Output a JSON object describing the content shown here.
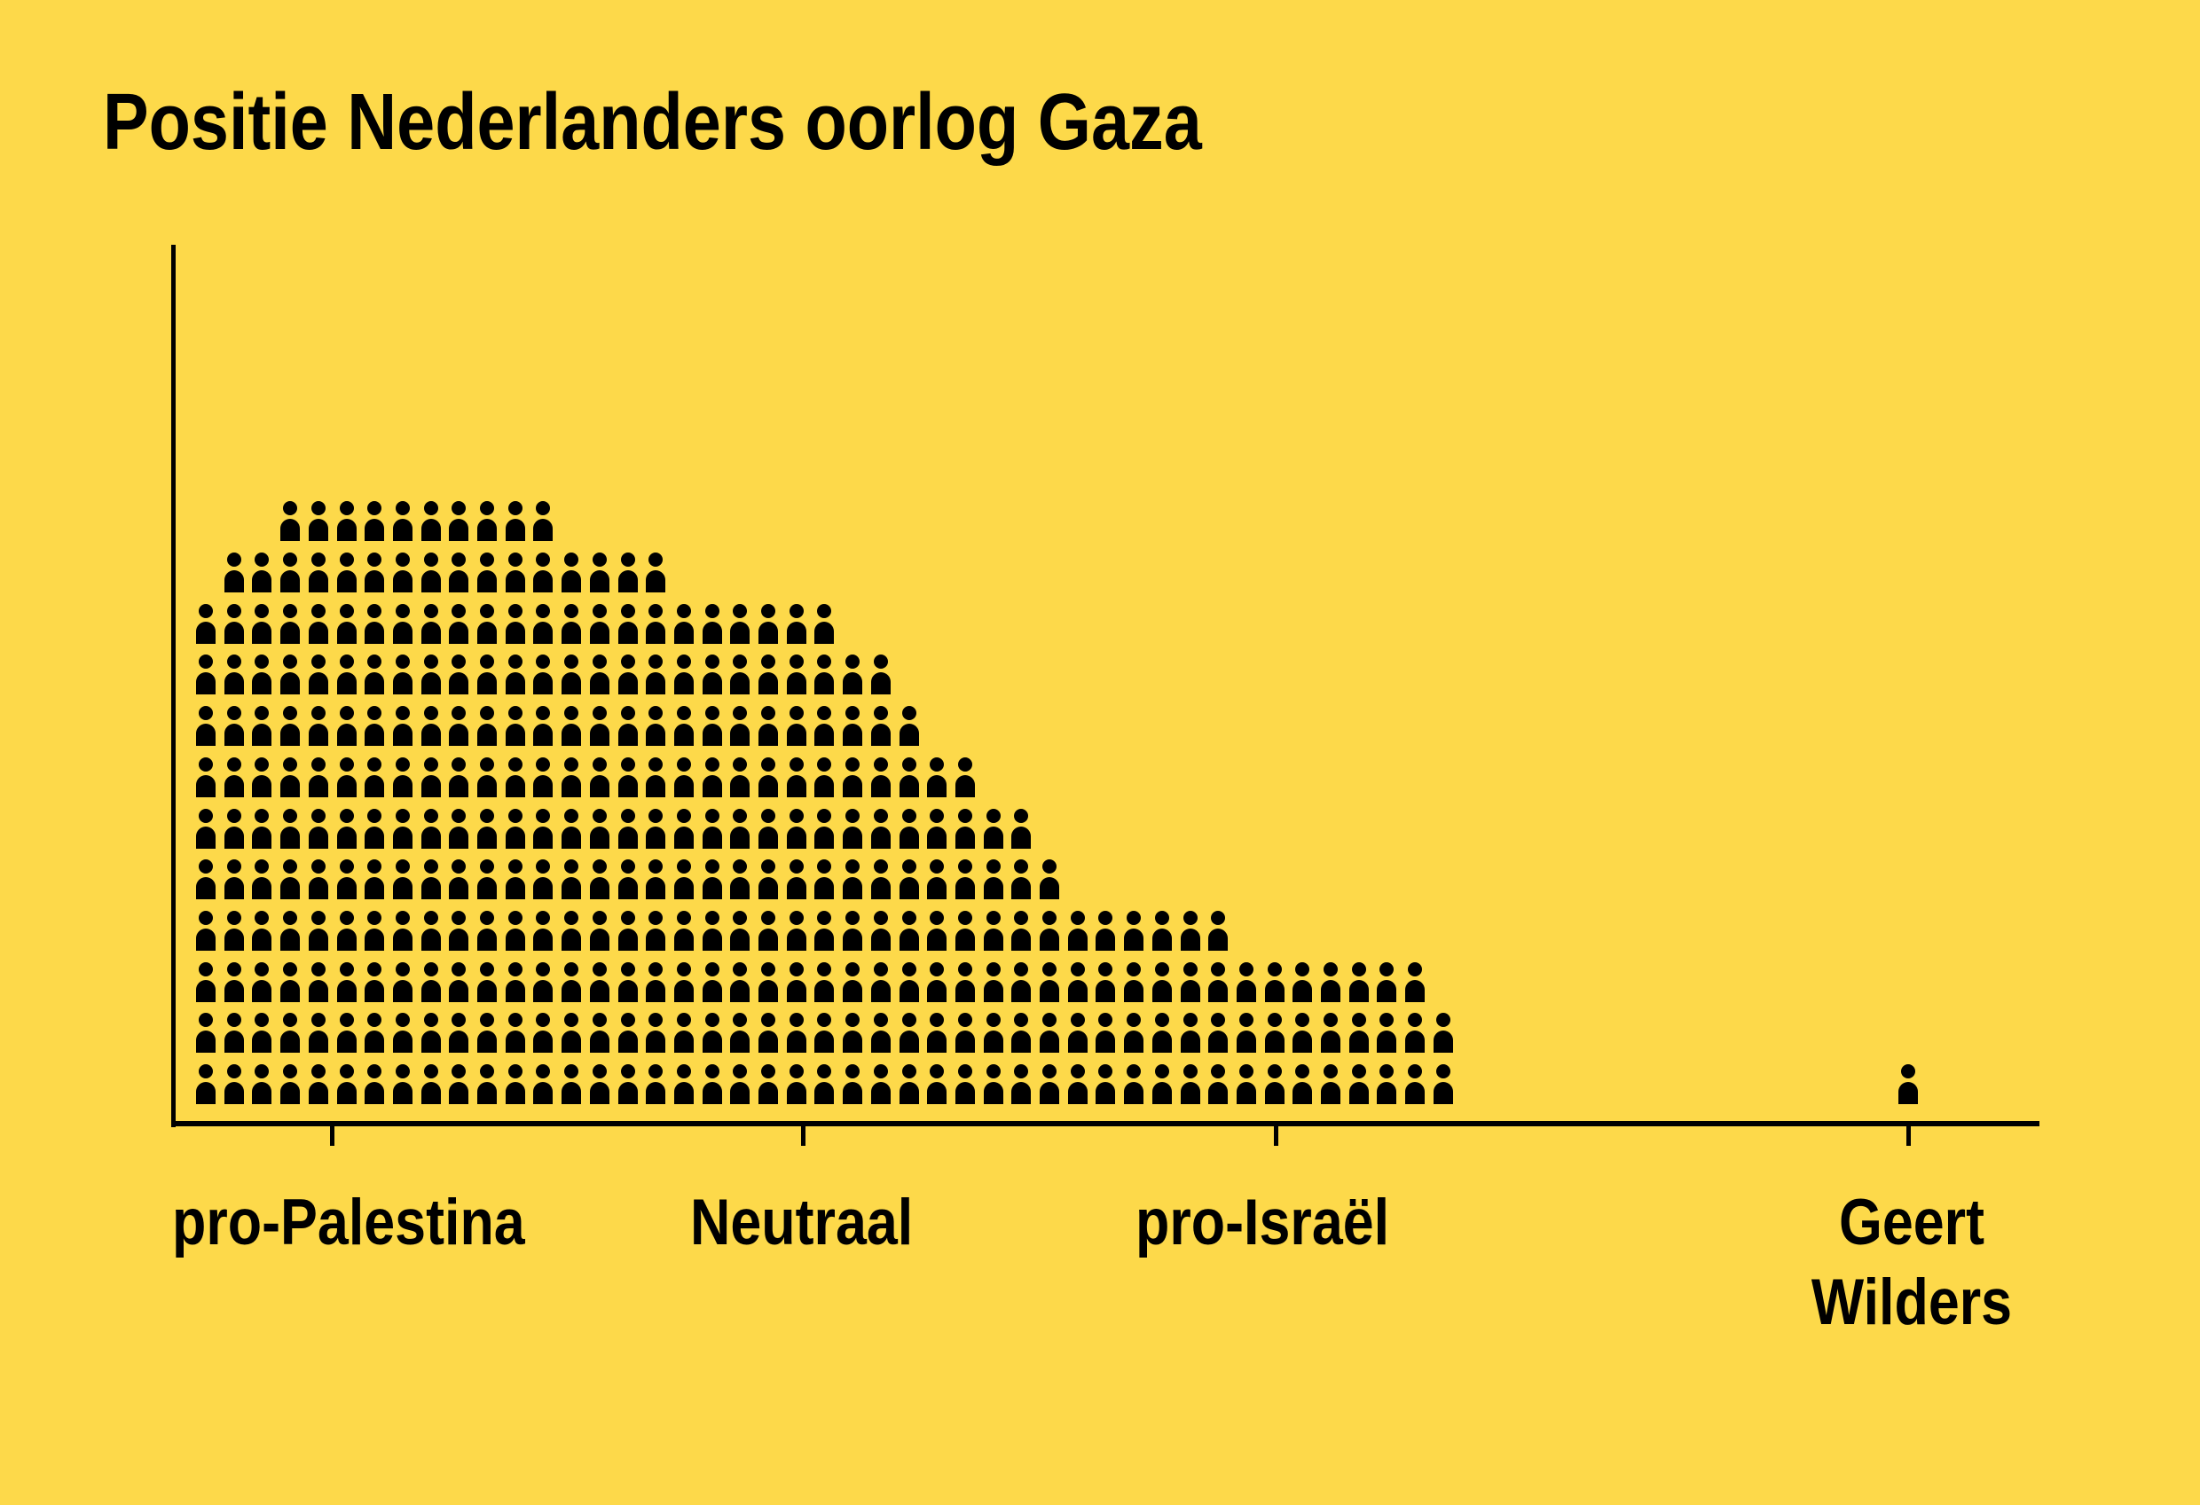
{
  "page": {
    "background_color": "#FDD94A",
    "ink_color": "#000000"
  },
  "chart_data": {
    "type": "pictogram",
    "title": "Positie Nederlanders oorlog Gaza",
    "xlabel": "",
    "ylabel": "",
    "unit_icon": "person-icon",
    "grid": false,
    "legend": null,
    "x_ticks": [
      {
        "label": "pro-Palestina",
        "column": 5.5
      },
      {
        "label": "Neutraal",
        "column": 22.5
      },
      {
        "label": "pro-Israël",
        "column": 39.3
      },
      {
        "label": "Geert Wilders",
        "column": 62
      }
    ],
    "columns": 45,
    "column_heights": [
      10,
      11,
      11,
      12,
      12,
      12,
      12,
      12,
      12,
      12,
      12,
      12,
      12,
      11,
      11,
      11,
      11,
      10,
      10,
      10,
      10,
      10,
      10,
      9,
      9,
      8,
      7,
      7,
      6,
      6,
      5,
      4,
      4,
      4,
      4,
      4,
      4,
      3,
      3,
      3,
      3,
      3,
      3,
      3,
      2
    ],
    "rows_top_to_bottom": [
      {
        "start_col": 4,
        "count": 10
      },
      {
        "start_col": 2,
        "count": 16
      },
      {
        "start_col": 1,
        "count": 23
      },
      {
        "start_col": 1,
        "count": 25
      },
      {
        "start_col": 1,
        "count": 26
      },
      {
        "start_col": 1,
        "count": 28
      },
      {
        "start_col": 1,
        "count": 30
      },
      {
        "start_col": 1,
        "count": 31
      },
      {
        "start_col": 1,
        "count": 37
      },
      {
        "start_col": 1,
        "count": 44
      },
      {
        "start_col": 1,
        "count": 45
      },
      {
        "start_col": 1,
        "count": 45
      }
    ],
    "series": [
      {
        "name": "Nederlanders",
        "total_icons": 360
      },
      {
        "name": "Geert Wilders",
        "total_icons": 1,
        "position": "far right, beyond pro-Israël"
      }
    ]
  },
  "labels": {
    "title": "Positie Nederlanders oorlog Gaza",
    "x": {
      "pro_palestina": "pro-Palestina",
      "neutraal": "Neutraal",
      "pro_israel": "pro-Israël",
      "geert_line1": "Geert",
      "geert_line2": "Wilders"
    }
  }
}
